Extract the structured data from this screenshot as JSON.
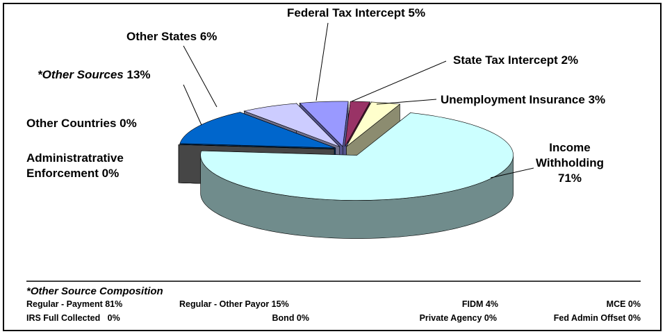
{
  "chart_data": {
    "type": "pie3d",
    "categories": [
      "Income Withholding",
      "Administratrative Enforcement",
      "Other Countries",
      "*Other Sources",
      "Other States",
      "Federal Tax Intercept",
      "State Tax Intercept",
      "Unemployment Insurance"
    ],
    "values": [
      71,
      0,
      0,
      13,
      6,
      5,
      2,
      3
    ],
    "value_labels": [
      "71%",
      "0%",
      "0%",
      "13%",
      "6%",
      "5%",
      "2%",
      "3%"
    ],
    "colors": [
      "#ccffff",
      "#330033",
      "#808080",
      "#0066cc",
      "#ccccff",
      "#9999ff",
      "#993366",
      "#ffffcc"
    ]
  },
  "composition": {
    "title": "*Other Source Composition",
    "rows": [
      [
        "Regular - Payment 81%",
        "Regular - Other Payor 15%",
        "FIDM 4%",
        "MCE 0%"
      ],
      [
        "IRS Full Collected   0%",
        "Bond 0%",
        "Private Agency 0%",
        "Fed Admin Offset 0%"
      ]
    ]
  }
}
